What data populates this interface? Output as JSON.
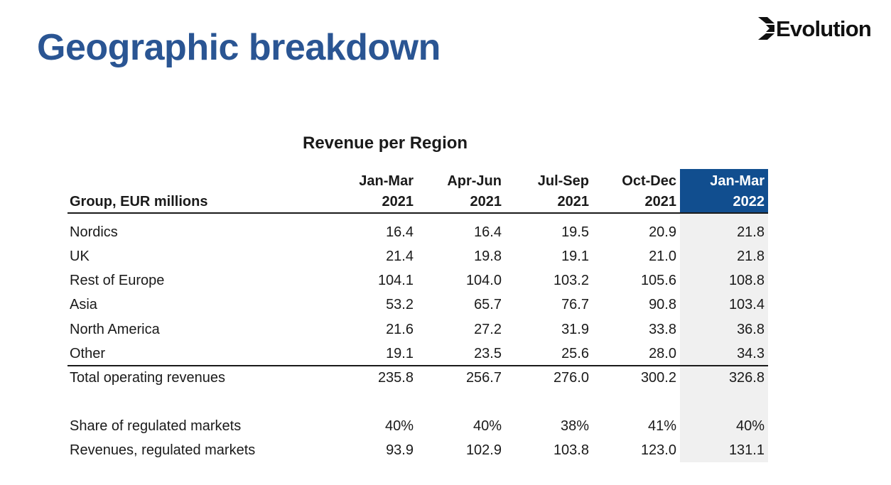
{
  "page": {
    "title": "Geographic breakdown"
  },
  "logo": {
    "text": "Evolution",
    "icon": "evolution-chevron-logo"
  },
  "table": {
    "title": "Revenue per Region",
    "row_header": "Group, EUR millions",
    "columns": [
      {
        "line1": "Jan-Mar",
        "line2": "2021"
      },
      {
        "line1": "Apr-Jun",
        "line2": "2021"
      },
      {
        "line1": "Jul-Sep",
        "line2": "2021"
      },
      {
        "line1": "Oct-Dec",
        "line2": "2021"
      },
      {
        "line1": "Jan-Mar",
        "line2": "2022"
      }
    ],
    "rows": [
      {
        "label": "Nordics",
        "values": [
          "16.4",
          "16.4",
          "19.5",
          "20.9",
          "21.8"
        ]
      },
      {
        "label": "UK",
        "values": [
          "21.4",
          "19.8",
          "19.1",
          "21.0",
          "21.8"
        ]
      },
      {
        "label": "Rest of Europe",
        "values": [
          "104.1",
          "104.0",
          "103.2",
          "105.6",
          "108.8"
        ]
      },
      {
        "label": "Asia",
        "values": [
          "53.2",
          "65.7",
          "76.7",
          "90.8",
          "103.4"
        ]
      },
      {
        "label": "North America",
        "values": [
          "21.6",
          "27.2",
          "31.9",
          "33.8",
          "36.8"
        ]
      },
      {
        "label": "Other",
        "values": [
          "19.1",
          "23.5",
          "25.6",
          "28.0",
          "34.3"
        ]
      },
      {
        "label": "Total operating revenues",
        "values": [
          "235.8",
          "256.7",
          "276.0",
          "300.2",
          "326.8"
        ]
      },
      {
        "label": "Share of regulated markets",
        "values": [
          "40%",
          "40%",
          "38%",
          "41%",
          "40%"
        ]
      },
      {
        "label": "Revenues, regulated markets",
        "values": [
          "93.9",
          "102.9",
          "103.8",
          "123.0",
          "131.1"
        ]
      }
    ]
  },
  "colors": {
    "title": "#2a5593",
    "highlight_header": "#114e8f",
    "highlight_column": "#f0f0f0"
  }
}
